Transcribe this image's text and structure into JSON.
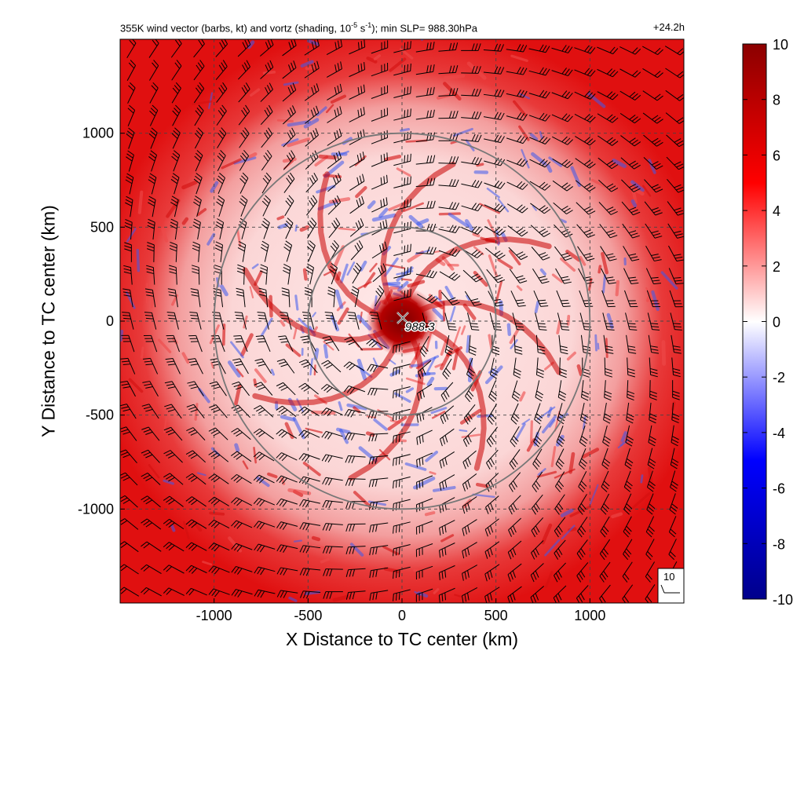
{
  "title": {
    "main_before_sup": "355K wind vector (barbs, kt) and vortz (shading, 10",
    "sup": "-5",
    "mid": " s",
    "sup2": "-1",
    "main_after_sup": "); min SLP= 988.30hPa",
    "time": "+24.2h"
  },
  "chart_data": {
    "type": "heatmap",
    "xlabel": "X Distance to TC center (km)",
    "ylabel": "Y Distance to TC center (km)",
    "xlim": [
      -1500,
      1500
    ],
    "ylim": [
      -1500,
      1500
    ],
    "xticks": [
      -1000,
      -500,
      0,
      500,
      1000
    ],
    "yticks": [
      -1000,
      -500,
      0,
      500,
      1000
    ],
    "grid": "dashed",
    "colorbar": {
      "min": -10,
      "max": 10,
      "ticks": [
        10,
        8,
        6,
        4,
        2,
        0,
        -2,
        -4,
        -6,
        -8,
        -10
      ],
      "colors": [
        "#00008b",
        "#0000ff",
        "#ffffff",
        "#ff0000",
        "#8b0000"
      ]
    },
    "range_circles_km": [
      500,
      1000
    ],
    "center": {
      "x": 0,
      "y": 0,
      "marker": "x",
      "label": "988.3"
    },
    "reference_barb": {
      "label": "10"
    },
    "wind_note": "cyclonic (counter-clockwise) flow, barbs in kt"
  },
  "colors": {
    "outer_red": "#e01010",
    "inner_pale": "#f7c4c4",
    "core": "#8b0000",
    "blue_streak": "#3c5af0",
    "circle": "#777777"
  }
}
